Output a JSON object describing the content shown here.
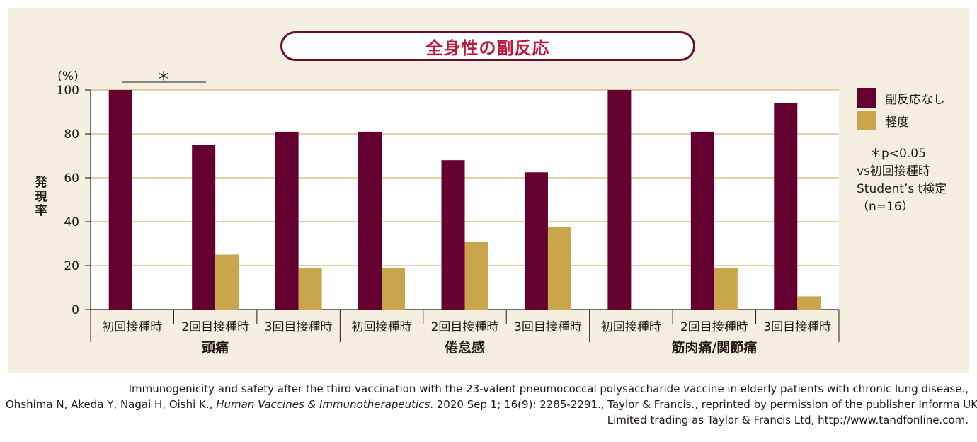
{
  "title": "全身性の副反応",
  "legend": {
    "items": [
      {
        "label": "副反応なし",
        "color": "#640030"
      },
      {
        "label": "軽度",
        "color": "#c9a54c"
      }
    ]
  },
  "note": {
    "line1": "＊p<0.05",
    "line2": "vs初回接種時",
    "line3": "Student’s t検定",
    "line4": "（n=16）"
  },
  "significance_mark": "＊",
  "citation": {
    "line1": "Immunogenicity and safety after the third vaccination with the 23-valent pneumococcal polysaccharide vaccine in elderly patients with chronic lung disease.,",
    "line2_pre": "Ohshima N, Akeda Y, Nagai H, Oishi K., ",
    "line2_journal": "Human Vaccines & Immunotherapeutics",
    "line2_post": ". 2020 Sep 1; 16(9): 2285-2291., Taylor & Francis., reprinted by permission of the publisher Informa UK",
    "line3": "Limited trading as Taylor & Francis Ltd, http://www.tandfonline.com."
  },
  "chart_data": {
    "type": "bar",
    "ylabel": "発現率",
    "yunit": "(%)",
    "ylim": [
      0,
      100
    ],
    "yticks": [
      0,
      20,
      40,
      60,
      80,
      100
    ],
    "grid": true,
    "legend_position": "right",
    "groups": [
      "頭痛",
      "倦怠感",
      "筋肉痛/関節痛"
    ],
    "categories": [
      "初回接種時",
      "2回目接種時",
      "3回目接種時",
      "初回接種時",
      "2回目接種時",
      "3回目接種時",
      "初回接種時",
      "2回目接種時",
      "3回目接種時"
    ],
    "series": [
      {
        "name": "副反応なし",
        "color": "#640030",
        "values": [
          100,
          75,
          81,
          81,
          68,
          62.5,
          100,
          81,
          94
        ]
      },
      {
        "name": "軽度",
        "color": "#c9a54c",
        "values": [
          0,
          25,
          19,
          19,
          31,
          37.5,
          0,
          19,
          6
        ]
      }
    ]
  }
}
